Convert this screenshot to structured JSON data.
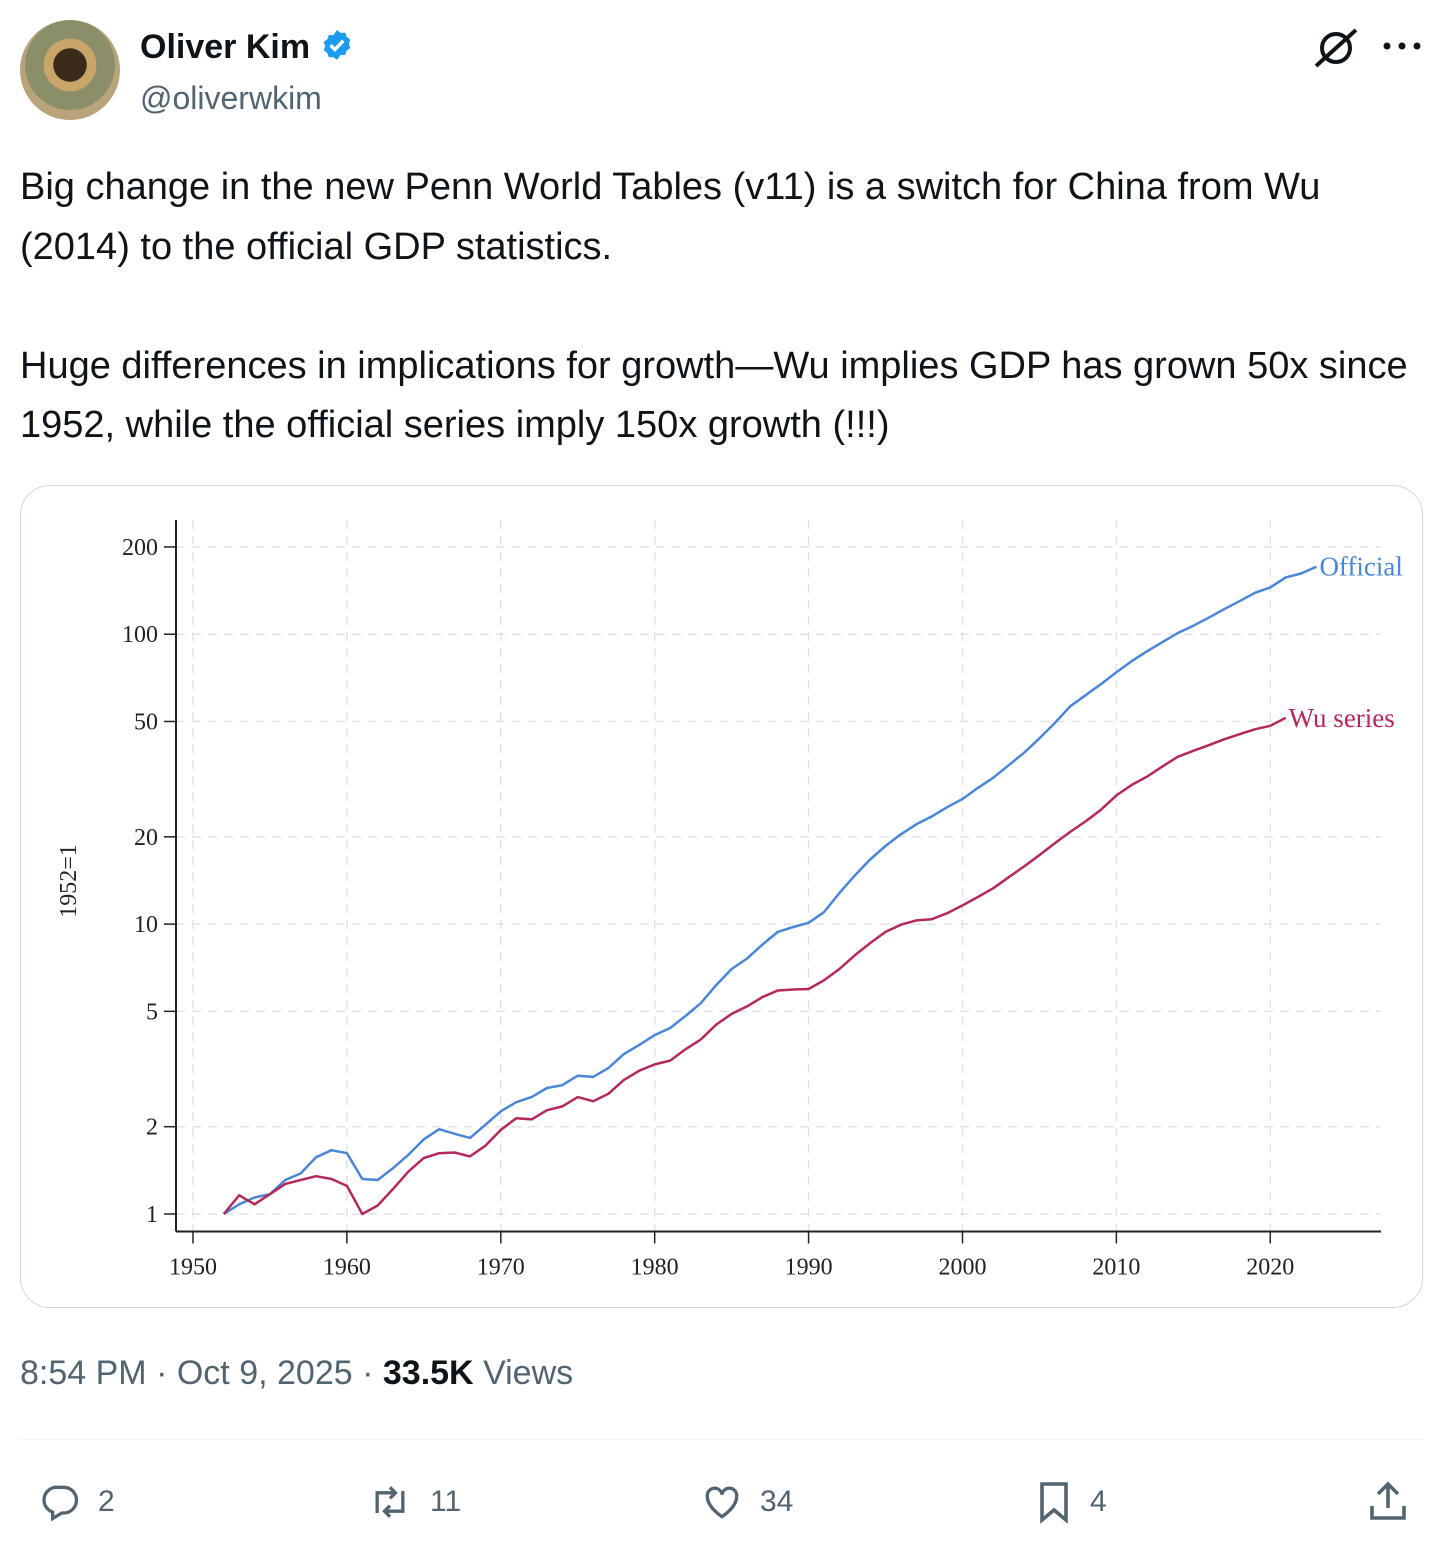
{
  "author": {
    "name": "Oliver Kim",
    "handle": "@oliverwkim"
  },
  "text": [
    "Big change in the new Penn World Tables (v11) is a switch for China from Wu (2014) to the official GDP statistics.",
    "Huge differences in implications for growth—Wu implies GDP has grown 50x since 1952, while the official series imply 150x growth (!!!)"
  ],
  "chart_data": {
    "type": "line",
    "ylabel": "1952=1",
    "log_y": true,
    "grid": true,
    "x": [
      1952,
      1953,
      1954,
      1955,
      1956,
      1957,
      1958,
      1959,
      1960,
      1961,
      1962,
      1963,
      1964,
      1965,
      1966,
      1967,
      1968,
      1969,
      1970,
      1971,
      1972,
      1973,
      1974,
      1975,
      1976,
      1977,
      1978,
      1979,
      1980,
      1981,
      1982,
      1983,
      1984,
      1985,
      1986,
      1987,
      1988,
      1989,
      1990,
      1991,
      1992,
      1993,
      1994,
      1995,
      1996,
      1997,
      1998,
      1999,
      2000,
      2001,
      2002,
      2003,
      2004,
      2005,
      2006,
      2007,
      2008,
      2009,
      2010,
      2011,
      2012,
      2013,
      2014,
      2015,
      2016,
      2017,
      2018,
      2019,
      2020,
      2021,
      2022,
      2023
    ],
    "series": [
      {
        "name": "Official",
        "color": "#4a86d8",
        "values": [
          1,
          1.08,
          1.14,
          1.17,
          1.31,
          1.38,
          1.57,
          1.66,
          1.62,
          1.32,
          1.31,
          1.44,
          1.6,
          1.81,
          1.96,
          1.89,
          1.83,
          2.03,
          2.26,
          2.43,
          2.53,
          2.72,
          2.78,
          3.0,
          2.97,
          3.19,
          3.56,
          3.83,
          4.14,
          4.38,
          4.82,
          5.34,
          6.16,
          7.0,
          7.6,
          8.5,
          9.4,
          9.77,
          10.1,
          11.0,
          12.8,
          14.7,
          16.7,
          18.6,
          20.4,
          22.1,
          23.5,
          25.3,
          27,
          29.5,
          32,
          35.3,
          39,
          43.7,
          49.4,
          56.4,
          61.6,
          67.3,
          73.9,
          80.8,
          87.4,
          93.9,
          101,
          107,
          114,
          122,
          130,
          139,
          145,
          157,
          162,
          171
        ]
      },
      {
        "name": "Wu series",
        "color": "#b5285a",
        "values": [
          1,
          1.16,
          1.08,
          1.17,
          1.27,
          1.31,
          1.35,
          1.32,
          1.25,
          1.0,
          1.07,
          1.22,
          1.4,
          1.56,
          1.62,
          1.63,
          1.58,
          1.72,
          1.95,
          2.14,
          2.12,
          2.28,
          2.35,
          2.53,
          2.45,
          2.6,
          2.9,
          3.12,
          3.28,
          3.38,
          3.7,
          4.0,
          4.5,
          4.9,
          5.2,
          5.6,
          5.9,
          5.95,
          5.97,
          6.4,
          7.0,
          7.8,
          8.6,
          9.4,
          9.95,
          10.3,
          10.4,
          10.9,
          11.6,
          12.4,
          13.3,
          14.5,
          15.8,
          17.3,
          19.0,
          20.8,
          22.6,
          24.8,
          27.8,
          30.2,
          32.3,
          35.0,
          37.8,
          39.6,
          41.4,
          43.4,
          45.2,
          47.0,
          48.3,
          51.5,
          null,
          null
        ]
      }
    ],
    "xlim": [
      1949,
      2027
    ],
    "xticks": [
      1950,
      1960,
      1970,
      1980,
      1990,
      2000,
      2010,
      2020
    ],
    "ylim": [
      0.87,
      240
    ],
    "yticks": [
      1,
      2,
      5,
      10,
      20,
      50,
      100,
      200
    ]
  },
  "meta": {
    "time": "8:54 PM",
    "separator": "·",
    "date": "Oct 9, 2025",
    "views_count": "33.5K",
    "views_label": "Views"
  },
  "actions": {
    "replies": 2,
    "reposts": 11,
    "likes": 34,
    "bookmarks": 4
  }
}
